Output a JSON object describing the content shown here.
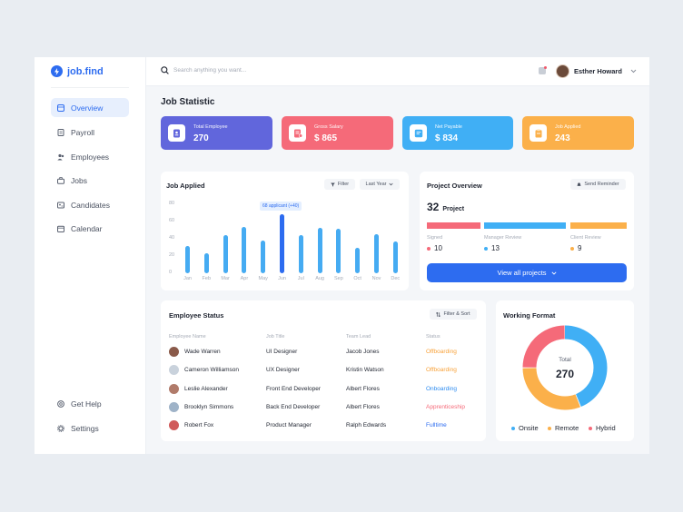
{
  "brand": {
    "name": "job.find",
    "accent": "#2d6cf0"
  },
  "sidebar": {
    "items": [
      {
        "label": "Overview",
        "icon": "grid-icon",
        "active": true
      },
      {
        "label": "Payroll",
        "icon": "document-icon"
      },
      {
        "label": "Employees",
        "icon": "users-icon"
      },
      {
        "label": "Jobs",
        "icon": "briefcase-icon"
      },
      {
        "label": "Candidates",
        "icon": "id-card-icon"
      },
      {
        "label": "Calendar",
        "icon": "calendar-icon"
      }
    ],
    "footer": [
      {
        "label": "Get Help",
        "icon": "help-icon"
      },
      {
        "label": "Settings",
        "icon": "gear-icon"
      }
    ]
  },
  "topbar": {
    "search_placeholder": "Search anything you want...",
    "user_name": "Esther Howard"
  },
  "page_title": "Job Statistic",
  "stats": [
    {
      "label": "Total Employee",
      "value": "270",
      "color": "#6166dc"
    },
    {
      "label": "Gross Salary",
      "value": "$ 865",
      "color": "#f56a79"
    },
    {
      "label": "Net Payable",
      "value": "$ 834",
      "color": "#40aff5"
    },
    {
      "label": "Job Applied",
      "value": "243",
      "color": "#fbb04a"
    }
  ],
  "job_applied": {
    "title": "Job Applied",
    "filter_label": "Filter",
    "period_label": "Last Year",
    "tooltip": "68 applicant (+40)"
  },
  "chart_data": {
    "type": "bar",
    "categories": [
      "Jan",
      "Feb",
      "Mar",
      "Apr",
      "May",
      "Jun",
      "Jul",
      "Aug",
      "Sep",
      "Oct",
      "Nov",
      "Dec"
    ],
    "values": [
      32,
      23,
      44,
      54,
      38,
      68,
      44,
      53,
      52,
      30,
      45,
      37
    ],
    "highlight_index": 5,
    "yticks": [
      "80",
      "60",
      "40",
      "20",
      "0"
    ],
    "ylim": [
      0,
      80
    ],
    "colors": {
      "bar": "#45abf2",
      "highlight": "#2d6cf0"
    }
  },
  "project_overview": {
    "title": "Project Overview",
    "reminder_label": "Send Reminder",
    "count": "32",
    "count_label": "Project",
    "segments": [
      {
        "label": "Signed",
        "value": "10",
        "color": "#f56a79"
      },
      {
        "label": "Manager Review",
        "value": "13",
        "color": "#40aff5"
      },
      {
        "label": "Client Review",
        "value": "9",
        "color": "#fbb04a"
      }
    ],
    "button_label": "View all projects"
  },
  "employee_status": {
    "title": "Employee Status",
    "filter_label": "Filter & Sort",
    "columns": [
      "Employee Name",
      "Job Title",
      "Team Lead",
      "Status"
    ],
    "rows": [
      {
        "name": "Wade Warren",
        "title": "UI Designer",
        "lead": "Jacob Jones",
        "status": "Offboarding",
        "status_color": "#f8a23a",
        "avatar": "#8a5a4a"
      },
      {
        "name": "Cameron Williamson",
        "title": "UX Designer",
        "lead": "Kristin Watson",
        "status": "Offboarding",
        "status_color": "#f8a23a",
        "avatar": "#c9d2dc"
      },
      {
        "name": "Leslie Alexander",
        "title": "Front End Developer",
        "lead": "Albert Flores",
        "status": "Onboarding",
        "status_color": "#2d8bf0",
        "avatar": "#b07b6a"
      },
      {
        "name": "Brooklyn Simmons",
        "title": "Back End Developer",
        "lead": "Albert Flores",
        "status": "Apprenticeship",
        "status_color": "#f56a79",
        "avatar": "#9fb3c8"
      },
      {
        "name": "Robert Fox",
        "title": "Product Manager",
        "lead": "Ralph Edwards",
        "status": "Fulltime",
        "status_color": "#2d6cf0",
        "avatar": "#d05a5a"
      }
    ]
  },
  "working_format": {
    "title": "Working Format",
    "total_label": "Total",
    "total_value": "270",
    "legend": [
      {
        "label": "Onsite",
        "color": "#40aff5",
        "share": 0.44
      },
      {
        "label": "Remote",
        "color": "#fbb04a",
        "share": 0.31
      },
      {
        "label": "Hybrid",
        "color": "#f56a79",
        "share": 0.25
      }
    ]
  }
}
